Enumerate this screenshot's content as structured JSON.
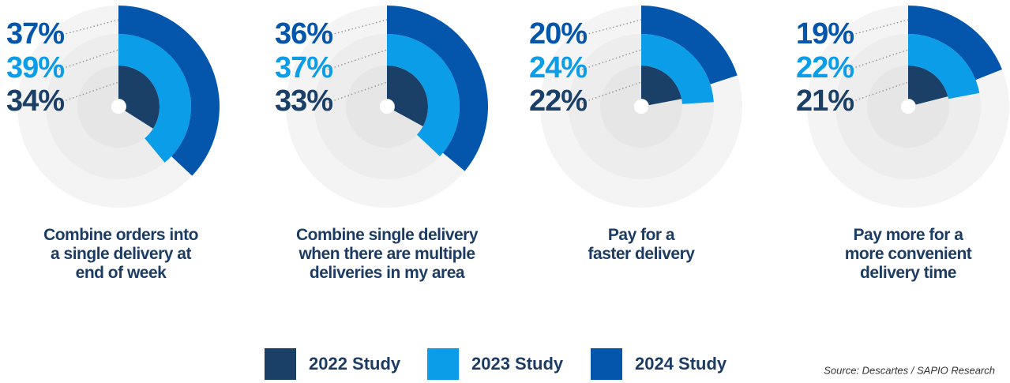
{
  "chart_data": {
    "type": "radial_bar",
    "categories": [
      "Combine orders into\na single delivery at\nend of week",
      "Combine single delivery\nwhen there are multiple\ndeliveries in my area",
      "Pay for a\nfaster delivery",
      "Pay more for a\nmore convenient\ndelivery time"
    ],
    "series": [
      {
        "name": "2022 Study",
        "color": "#1b4068",
        "values": [
          34,
          33,
          22,
          21
        ],
        "value_labels": [
          "34%",
          "33%",
          "22%",
          "21%"
        ]
      },
      {
        "name": "2023 Study",
        "color": "#0b9de8",
        "values": [
          39,
          37,
          24,
          22
        ],
        "value_labels": [
          "39%",
          "37%",
          "24%",
          "22%"
        ]
      },
      {
        "name": "2024 Study",
        "color": "#0456ad",
        "values": [
          37,
          36,
          20,
          19
        ],
        "value_labels": [
          "37%",
          "36%",
          "20%",
          "19%"
        ]
      }
    ],
    "ylim": [
      0,
      100
    ],
    "source": "Source: Descartes / SAPIO Research"
  }
}
